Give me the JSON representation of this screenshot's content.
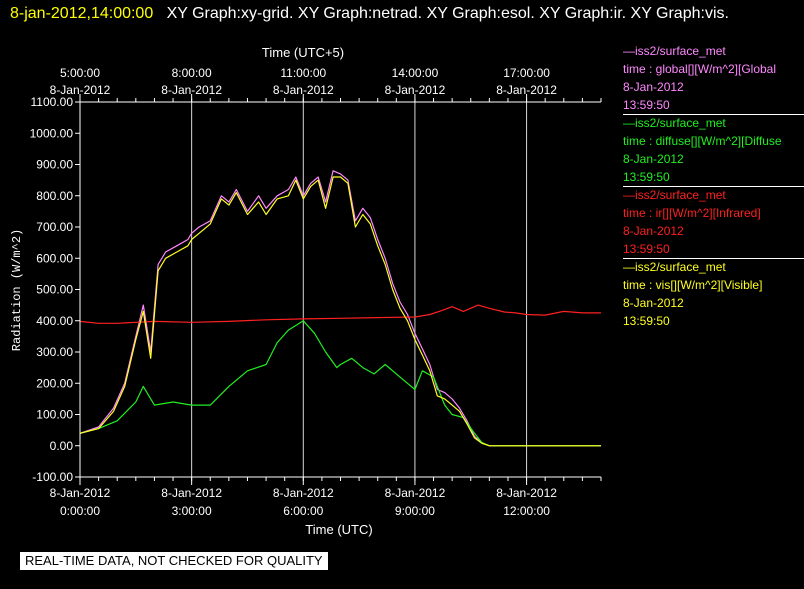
{
  "header": {
    "datetime": "8-jan-2012,14:00:00",
    "titles": "XY Graph:xy-grid.  XY Graph:netrad.  XY Graph:esol.  XY Graph:ir.  XY Graph:vis."
  },
  "disclaimer": "REAL-TIME DATA, NOT CHECKED FOR QUALITY",
  "legend": [
    {
      "source": "—iss2/surface_met",
      "variable": "time : global[][W/m^2][Global",
      "date": "8-Jan-2012",
      "time": "13:59:50",
      "color": "#ff88ff"
    },
    {
      "source": "—iss2/surface_met",
      "variable": "time : diffuse[][W/m^2][Diffuse",
      "date": "8-Jan-2012",
      "time": "13:59:50",
      "color": "#22ee22"
    },
    {
      "source": "—iss2/surface_met",
      "variable": "time : ir[][W/m^2][Infrared]",
      "date": "8-Jan-2012",
      "time": "13:59:50",
      "color": "#ff2020"
    },
    {
      "source": "—iss2/surface_met",
      "variable": "time : vis[][W/m^2][Visible]",
      "date": "8-Jan-2012",
      "time": "13:59:50",
      "color": "#ffff22"
    }
  ],
  "chart_data": {
    "type": "line",
    "ylabel": "Radiation (W/m^2)",
    "xlabel_bottom": "Time (UTC)",
    "xlabel_top": "Time (UTC+5)",
    "ylim": [
      -100,
      1100
    ],
    "xlim_hours": [
      0,
      14
    ],
    "yticks": [
      "1100.00",
      "1000.00",
      "900.00",
      "800.00",
      "700.00",
      "600.00",
      "500.00",
      "400.00",
      "300.00",
      "200.00",
      "100.00",
      "0.00",
      "-100.00"
    ],
    "yticks_values": [
      1100,
      1000,
      900,
      800,
      700,
      600,
      500,
      400,
      300,
      200,
      100,
      0,
      -100
    ],
    "xticks_bottom": [
      {
        "hour": 0,
        "date": "8-Jan-2012",
        "time": "0:00:00"
      },
      {
        "hour": 3,
        "date": "8-Jan-2012",
        "time": "3:00:00"
      },
      {
        "hour": 6,
        "date": "8-Jan-2012",
        "time": "6:00:00"
      },
      {
        "hour": 9,
        "date": "8-Jan-2012",
        "time": "9:00:00"
      },
      {
        "hour": 12,
        "date": "8-Jan-2012",
        "time": "12:00:00"
      }
    ],
    "xticks_top": [
      {
        "hour": 0,
        "time": "5:00:00",
        "date": "8-Jan-2012"
      },
      {
        "hour": 3,
        "time": "8:00:00",
        "date": "8-Jan-2012"
      },
      {
        "hour": 6,
        "time": "11:00:00",
        "date": "8-Jan-2012"
      },
      {
        "hour": 9,
        "time": "14:00:00",
        "date": "8-Jan-2012"
      },
      {
        "hour": 12,
        "time": "17:00:00",
        "date": "8-Jan-2012"
      }
    ],
    "grid_vertical": true,
    "series": [
      {
        "name": "global",
        "color": "#ff88ff",
        "x": [
          0,
          0.5,
          0.9,
          1.2,
          1.5,
          1.7,
          1.9,
          2.1,
          2.3,
          2.6,
          2.9,
          3.0,
          3.2,
          3.5,
          3.8,
          4.0,
          4.2,
          4.5,
          4.8,
          5.0,
          5.3,
          5.6,
          5.8,
          6.0,
          6.2,
          6.4,
          6.6,
          6.8,
          7.0,
          7.2,
          7.4,
          7.6,
          7.8,
          8.0,
          8.2,
          8.4,
          8.6,
          8.8,
          9.0,
          9.2,
          9.4,
          9.6,
          9.8,
          10.0,
          10.2,
          10.4,
          10.6,
          10.8,
          11.0,
          12.0,
          13.0,
          14.0
        ],
        "values": [
          40,
          60,
          120,
          200,
          350,
          450,
          300,
          580,
          620,
          640,
          660,
          680,
          700,
          720,
          800,
          780,
          820,
          750,
          800,
          760,
          800,
          820,
          860,
          800,
          840,
          860,
          780,
          880,
          870,
          850,
          720,
          760,
          730,
          660,
          600,
          520,
          460,
          420,
          360,
          310,
          260,
          180,
          170,
          150,
          120,
          80,
          30,
          10,
          0,
          0,
          0,
          0
        ]
      },
      {
        "name": "diffuse",
        "color": "#22ee22",
        "x": [
          0,
          0.5,
          1.0,
          1.5,
          1.7,
          2.0,
          2.5,
          3.0,
          3.5,
          4.0,
          4.5,
          5.0,
          5.3,
          5.6,
          6.0,
          6.3,
          6.6,
          6.9,
          7.0,
          7.3,
          7.6,
          7.9,
          8.2,
          8.5,
          8.8,
          9.0,
          9.2,
          9.5,
          9.8,
          10.0,
          10.3,
          10.6,
          10.8,
          11.0,
          12.0,
          14.0
        ],
        "values": [
          40,
          55,
          80,
          140,
          190,
          130,
          140,
          130,
          130,
          190,
          240,
          260,
          330,
          370,
          400,
          360,
          300,
          250,
          260,
          280,
          250,
          230,
          260,
          230,
          200,
          180,
          240,
          220,
          130,
          100,
          90,
          40,
          10,
          0,
          0,
          0
        ]
      },
      {
        "name": "ir",
        "color": "#ff2020",
        "x": [
          0,
          0.5,
          1.0,
          1.5,
          2.0,
          3.0,
          4.0,
          5.0,
          6.0,
          7.0,
          8.0,
          9.0,
          9.4,
          9.7,
          10.0,
          10.3,
          10.7,
          11.0,
          11.4,
          11.7,
          12.0,
          12.5,
          13.0,
          13.5,
          14.0
        ],
        "values": [
          398,
          392,
          392,
          395,
          398,
          395,
          398,
          403,
          406,
          408,
          410,
          412,
          420,
          432,
          445,
          430,
          450,
          440,
          428,
          425,
          420,
          418,
          430,
          425,
          425
        ]
      },
      {
        "name": "vis",
        "color": "#ffff22",
        "x": [
          0,
          0.5,
          0.9,
          1.2,
          1.5,
          1.7,
          1.9,
          2.1,
          2.3,
          2.6,
          2.9,
          3.0,
          3.2,
          3.5,
          3.8,
          4.0,
          4.2,
          4.5,
          4.8,
          5.0,
          5.3,
          5.6,
          5.8,
          6.0,
          6.2,
          6.4,
          6.6,
          6.8,
          7.0,
          7.2,
          7.4,
          7.6,
          7.8,
          8.0,
          8.2,
          8.4,
          8.6,
          8.8,
          9.0,
          9.2,
          9.4,
          9.6,
          9.8,
          10.0,
          10.2,
          10.4,
          10.6,
          10.8,
          11.0,
          12.0,
          13.0,
          14.0
        ],
        "values": [
          40,
          55,
          110,
          190,
          340,
          430,
          280,
          560,
          600,
          620,
          640,
          660,
          680,
          710,
          790,
          770,
          810,
          740,
          780,
          740,
          790,
          800,
          850,
          790,
          830,
          850,
          760,
          860,
          860,
          840,
          700,
          740,
          710,
          640,
          580,
          500,
          440,
          400,
          340,
          290,
          240,
          160,
          150,
          130,
          110,
          70,
          25,
          8,
          0,
          0,
          0,
          0
        ]
      }
    ]
  }
}
